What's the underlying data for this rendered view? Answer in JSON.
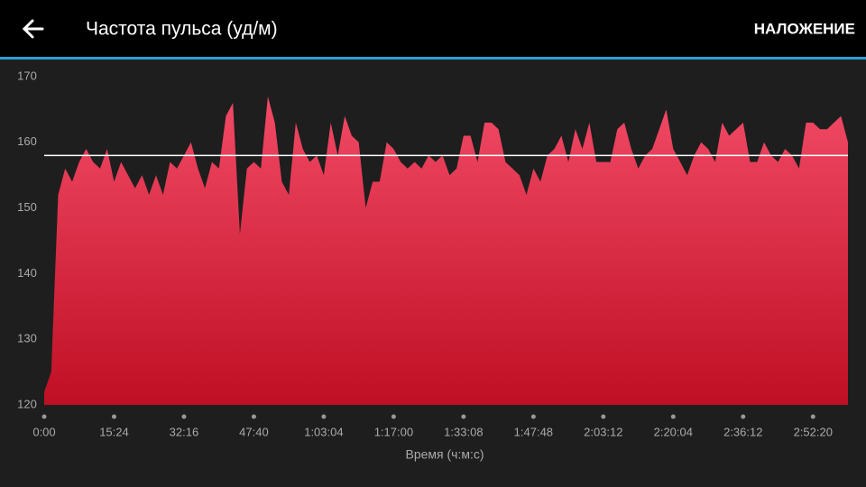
{
  "header": {
    "title": "Частота пульса (уд/м)",
    "action": "НАЛОЖЕНИЕ"
  },
  "chart_data": {
    "type": "area",
    "x": [
      0,
      1,
      2,
      3,
      4,
      5,
      6,
      7,
      8,
      9,
      10,
      11,
      12,
      13,
      14,
      15,
      16,
      17,
      18,
      19,
      20,
      21,
      22,
      23,
      24,
      25,
      26,
      27,
      28,
      29,
      30,
      31,
      32,
      33,
      34,
      35,
      36,
      37,
      38,
      39,
      40,
      41,
      42,
      43,
      44,
      45,
      46,
      47,
      48,
      49,
      50,
      51,
      52,
      53,
      54,
      55,
      56,
      57,
      58,
      59,
      60,
      61,
      62,
      63,
      64,
      65,
      66,
      67,
      68,
      69,
      70,
      71,
      72,
      73,
      74,
      75,
      76,
      77,
      78,
      79,
      80,
      81,
      82,
      83,
      84,
      85,
      86,
      87,
      88,
      89,
      90,
      91,
      92,
      93,
      94,
      95,
      96,
      97,
      98,
      99,
      100,
      101,
      102,
      103,
      104,
      105,
      106,
      107,
      108,
      109,
      110,
      111,
      112,
      113,
      114,
      115
    ],
    "values": [
      122,
      125,
      152,
      156,
      154,
      157,
      159,
      157,
      156,
      159,
      154,
      157,
      155,
      153,
      155,
      152,
      155,
      152,
      157,
      156,
      158,
      160,
      156,
      153,
      157,
      156,
      164,
      166,
      146,
      156,
      157,
      156,
      167,
      163,
      154,
      152,
      163,
      159,
      157,
      158,
      155,
      163,
      158,
      164,
      161,
      160,
      150,
      154,
      154,
      160,
      159,
      157,
      156,
      157,
      156,
      158,
      157,
      158,
      155,
      156,
      161,
      161,
      157,
      163,
      163,
      162,
      157,
      156,
      155,
      152,
      156,
      154,
      158,
      159,
      161,
      157,
      162,
      159,
      163,
      157,
      157,
      157,
      162,
      163,
      159,
      156,
      158,
      159,
      162,
      165,
      159,
      157,
      155,
      158,
      160,
      159,
      157,
      163,
      161,
      162,
      163,
      157,
      157,
      160,
      158,
      157,
      159,
      158,
      156,
      163,
      163,
      162,
      162,
      163,
      164,
      160
    ],
    "color": "#e8324f",
    "reference_line": 158,
    "xlabel": "Время (ч:м:с)",
    "xlim": [
      0,
      115
    ],
    "xticks": [
      {
        "value": 0,
        "label": "0:00"
      },
      {
        "value": 10,
        "label": "15:24"
      },
      {
        "value": 20,
        "label": "32:16"
      },
      {
        "value": 30,
        "label": "47:40"
      },
      {
        "value": 40,
        "label": "1:03:04"
      },
      {
        "value": 50,
        "label": "1:17:00"
      },
      {
        "value": 60,
        "label": "1:33:08"
      },
      {
        "value": 70,
        "label": "1:47:48"
      },
      {
        "value": 80,
        "label": "2:03:12"
      },
      {
        "value": 90,
        "label": "2:20:04"
      },
      {
        "value": 100,
        "label": "2:36:12"
      },
      {
        "value": 110,
        "label": "2:52:20"
      }
    ],
    "ylim": [
      120,
      170
    ],
    "yticks": [
      120,
      130,
      140,
      150,
      160,
      170
    ]
  }
}
